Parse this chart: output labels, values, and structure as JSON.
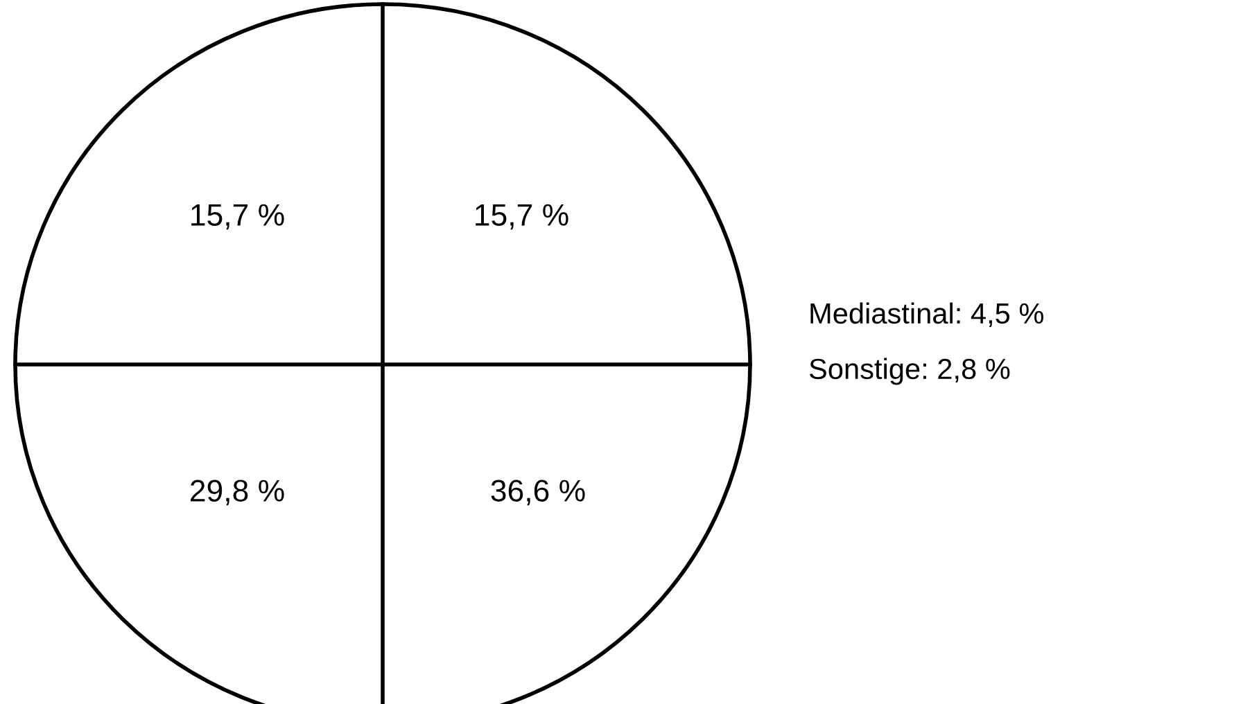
{
  "chart_data": {
    "type": "other",
    "categories": [
      null,
      null,
      null,
      null
    ],
    "values": [
      15.7,
      15.7,
      29.8,
      36.6
    ],
    "value_labels": [
      "15,7 %",
      "15,7 %",
      "29,8 %",
      "36,6 %"
    ],
    "annotations": [
      "Mediastinal: 4,5 %",
      "Sonstige: 2,8 %"
    ]
  }
}
